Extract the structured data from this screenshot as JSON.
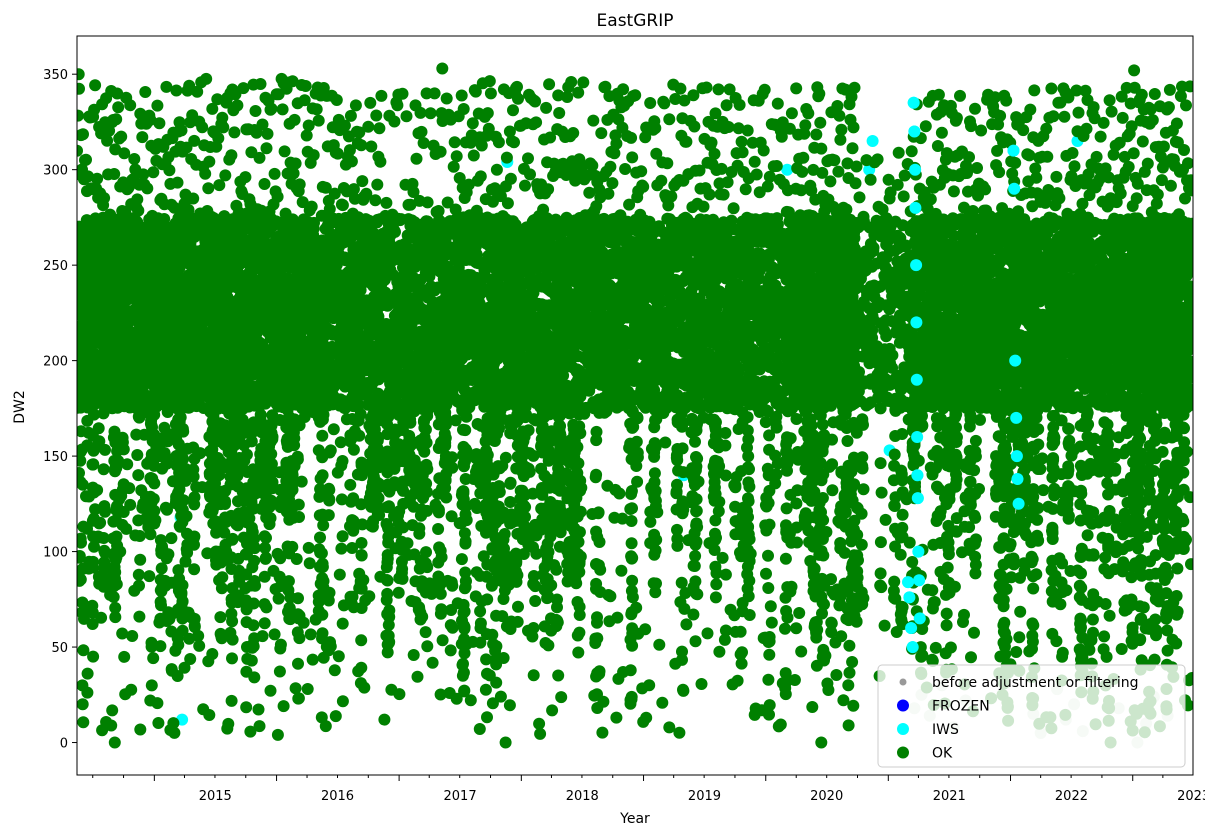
{
  "chart_data": {
    "type": "scatter",
    "title": "EastGRIP",
    "xlabel": "Year",
    "ylabel": "DW2",
    "xlim": [
      "2014-05-15",
      "2023-06-30"
    ],
    "ylim": [
      -17,
      370
    ],
    "x_ticks": [
      "2015",
      "2016",
      "2017",
      "2018",
      "2019",
      "2020",
      "2021",
      "2022",
      "2023"
    ],
    "y_ticks": [
      0,
      50,
      100,
      150,
      200,
      250,
      300,
      350
    ],
    "grid": false,
    "legend_position": "lower-right",
    "series": [
      {
        "name": "before adjustment or filtering",
        "color": "#808080",
        "marker_size": "small",
        "points": [
          [
            "2021-03-20",
            18
          ],
          [
            "2021-04-10",
            25
          ],
          [
            "2021-05-05",
            14
          ],
          [
            "2021-06-10",
            30
          ],
          [
            "2021-07-15",
            8
          ],
          [
            "2021-08-20",
            22
          ],
          [
            "2022-03-10",
            15
          ],
          [
            "2022-04-01",
            5
          ],
          [
            "2022-05-20",
            28
          ],
          [
            "2022-06-15",
            12
          ],
          [
            "2022-07-10",
            20
          ],
          [
            "2022-08-05",
            6
          ],
          [
            "2022-09-01",
            25
          ],
          [
            "2022-11-20",
            18
          ],
          [
            "2023-01-15",
            0
          ],
          [
            "2023-02-10",
            10
          ],
          [
            "2023-03-05",
            24
          ],
          [
            "2023-04-15",
            14
          ]
        ]
      },
      {
        "name": "FROZEN",
        "color": "#0000ff",
        "marker_size": "large",
        "points": []
      },
      {
        "name": "IWS",
        "color": "#00ffff",
        "marker_size": "large",
        "points": [
          [
            "2015-03-20",
            118
          ],
          [
            "2015-03-25",
            12
          ],
          [
            "2017-11-20",
            304
          ],
          [
            "2019-05-01",
            140
          ],
          [
            "2020-02-20",
            265
          ],
          [
            "2020-03-05",
            300
          ],
          [
            "2020-11-05",
            300
          ],
          [
            "2020-11-15",
            315
          ],
          [
            "2021-01-05",
            153
          ],
          [
            "2021-03-01",
            84
          ],
          [
            "2021-03-05",
            76
          ],
          [
            "2021-03-10",
            60
          ],
          [
            "2021-03-15",
            50
          ],
          [
            "2021-03-18",
            335
          ],
          [
            "2021-03-20",
            320
          ],
          [
            "2021-03-22",
            300
          ],
          [
            "2021-03-23",
            280
          ],
          [
            "2021-03-25",
            250
          ],
          [
            "2021-03-26",
            220
          ],
          [
            "2021-03-27",
            190
          ],
          [
            "2021-03-28",
            160
          ],
          [
            "2021-03-29",
            140
          ],
          [
            "2021-03-30",
            128
          ],
          [
            "2021-04-01",
            100
          ],
          [
            "2021-04-03",
            85
          ],
          [
            "2021-04-05",
            65
          ],
          [
            "2022-01-10",
            310
          ],
          [
            "2022-01-12",
            290
          ],
          [
            "2022-01-15",
            200
          ],
          [
            "2022-01-18",
            170
          ],
          [
            "2022-01-20",
            150
          ],
          [
            "2022-01-22",
            138
          ],
          [
            "2022-01-25",
            125
          ],
          [
            "2022-07-20",
            315
          ]
        ]
      },
      {
        "name": "OK",
        "color": "#008000",
        "marker_size": "large",
        "base_range": [
          175,
          275
        ],
        "segments": [
          {
            "start": "2014-05-15",
            "end": "2015-04-15",
            "low": 0,
            "high": 345,
            "density": 2.0
          },
          {
            "start": "2015-04-15",
            "end": "2016-09-01",
            "low": 5,
            "high": 348,
            "density": 1.7
          },
          {
            "start": "2016-09-01",
            "end": "2017-06-01",
            "low": 10,
            "high": 340,
            "density": 1.2
          },
          {
            "start": "2017-06-01",
            "end": "2018-11-01",
            "low": 0,
            "high": 347,
            "density": 1.5
          },
          {
            "start": "2018-11-01",
            "end": "2020-04-01",
            "low": 5,
            "high": 345,
            "density": 1.3
          },
          {
            "start": "2020-04-01",
            "end": "2020-10-01",
            "low": 0,
            "high": 345,
            "density": 2.2
          },
          {
            "start": "2020-10-01",
            "end": "2021-03-15",
            "low": 20,
            "high": 310,
            "density": 0.7
          },
          {
            "start": "2021-03-15",
            "end": "2022-03-01",
            "low": 5,
            "high": 340,
            "density": 1.6
          },
          {
            "start": "2022-03-01",
            "end": "2023-01-01",
            "low": 0,
            "high": 343,
            "density": 1.6
          },
          {
            "start": "2023-01-01",
            "end": "2023-06-30",
            "low": 5,
            "high": 345,
            "density": 2.0
          }
        ],
        "points": [
          [
            "2014-05-20",
            350
          ],
          [
            "2017-05-10",
            353
          ],
          [
            "2023-01-05",
            352
          ],
          [
            "2014-06-01",
            20
          ],
          [
            "2016-01-05",
            4
          ],
          [
            "2017-11-15",
            0
          ],
          [
            "2020-06-15",
            0
          ],
          [
            "2014-09-05",
            0
          ]
        ]
      }
    ]
  }
}
